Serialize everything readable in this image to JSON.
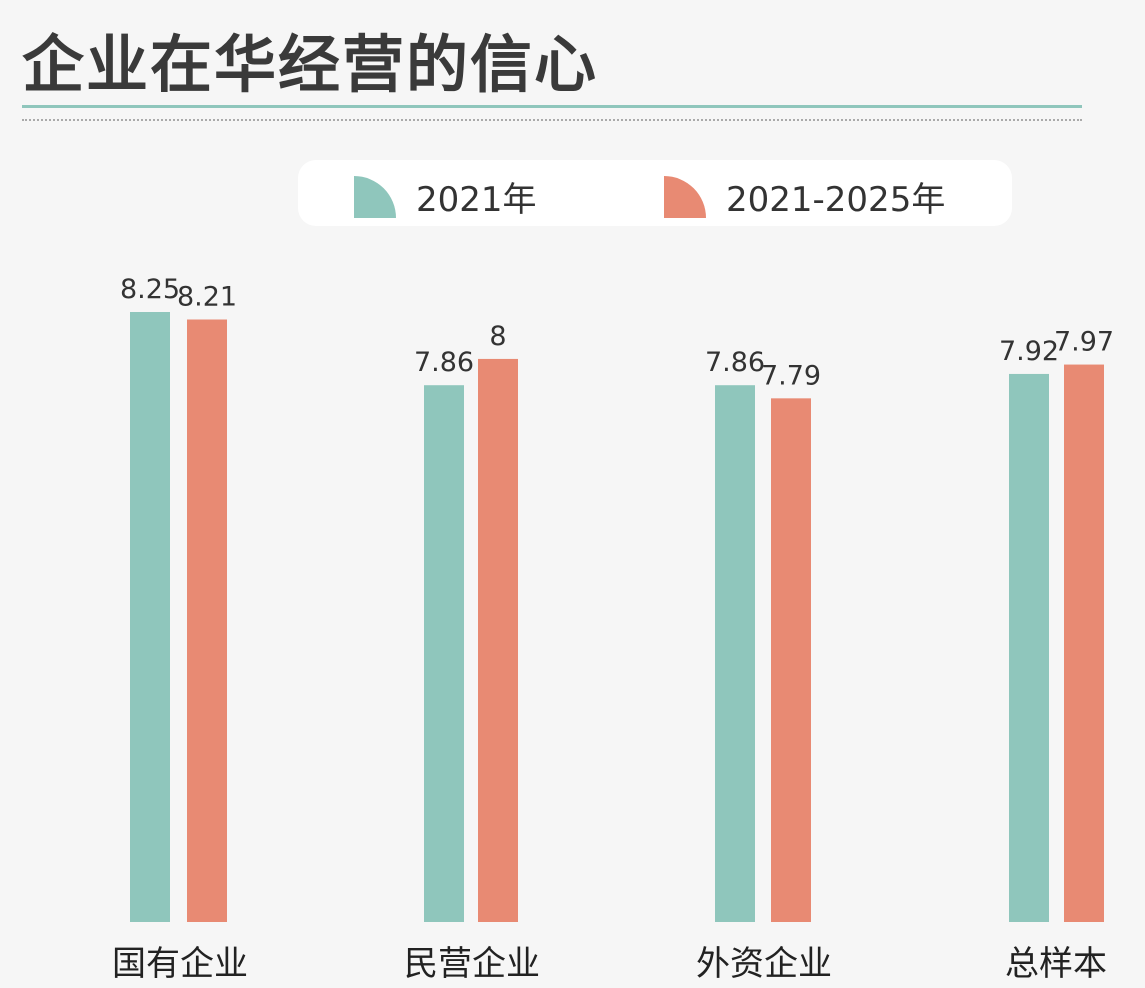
{
  "title": "企业在华经营的信心",
  "colors": {
    "series1": "#8fc6bc",
    "series2": "#e88a73"
  },
  "chart_data": {
    "type": "bar",
    "title": "企业在华经营的信心",
    "categories": [
      "国有企业",
      "民营企业",
      "外资企业",
      "总样本"
    ],
    "series": [
      {
        "name": "2021年",
        "values": [
          8.25,
          7.86,
          7.86,
          7.92
        ]
      },
      {
        "name": "2021-2025年",
        "values": [
          8.21,
          8,
          7.79,
          7.97
        ]
      }
    ],
    "value_labels": [
      [
        "8.25",
        "7.86",
        "7.86",
        "7.92"
      ],
      [
        "8.21",
        "8",
        "7.79",
        "7.97"
      ]
    ],
    "ylim": [
      5,
      8.25
    ],
    "grid": false,
    "legend": "top-center"
  }
}
